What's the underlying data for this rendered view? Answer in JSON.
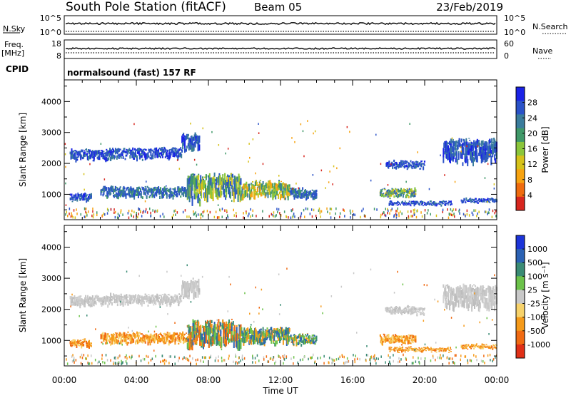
{
  "header": {
    "station": "South Pole Station (fitACF)",
    "beam": "Beam 05",
    "date": "23/Feb/2019"
  },
  "status_panels": {
    "nsky_label": "N.Sky",
    "nsky_ticks": [
      "10^5",
      "10^0"
    ],
    "nsearch_label": "N.Search",
    "nsearch_ticks": [
      "10^5",
      "10^0"
    ],
    "freq_label_line1": "Freq.",
    "freq_label_line2": "[MHz]",
    "freq_ticks": [
      "18",
      "8"
    ],
    "nave_label": "Nave",
    "nave_ticks": [
      "60",
      "0"
    ],
    "cpid_label": "CPID",
    "cpid_text": "normalsound (fast) 157 RF"
  },
  "chart_data": [
    {
      "type": "heatmap",
      "name": "power-panel",
      "ylabel": "Slant Range [km]",
      "xlabel": "",
      "ylim": [
        180,
        4700
      ],
      "yticks": [
        "1000",
        "2000",
        "3000",
        "4000"
      ],
      "xlim": [
        0,
        24
      ],
      "colorbar_label": "Power [dB]",
      "colorbar_ticks": [
        "4",
        "8",
        "12",
        "16",
        "20",
        "24",
        "28"
      ],
      "colorbar_colors": [
        "#1a22e6",
        "#2a52c8",
        "#3a7c9c",
        "#3f9868",
        "#8bc63b",
        "#d6c21a",
        "#f7a311",
        "#ef6b0e",
        "#d7261e"
      ],
      "echo_regions": [
        {
          "t_start": 0.3,
          "t_end": 2.5,
          "r_low": 2050,
          "r_high": 2450,
          "value": "blue"
        },
        {
          "t_start": 2.5,
          "t_end": 6.5,
          "r_low": 2100,
          "r_high": 2500,
          "value": "blue"
        },
        {
          "t_start": 6.5,
          "t_end": 7.5,
          "r_low": 2300,
          "r_high": 2950,
          "value": "blue"
        },
        {
          "t_start": 0.3,
          "t_end": 1.5,
          "r_low": 750,
          "r_high": 1050,
          "value": "blue"
        },
        {
          "t_start": 2.0,
          "t_end": 7.0,
          "r_low": 850,
          "r_high": 1250,
          "value": "blue-green"
        },
        {
          "t_start": 6.8,
          "t_end": 9.8,
          "r_low": 700,
          "r_high": 1600,
          "value": "green"
        },
        {
          "t_start": 9.8,
          "t_end": 12.5,
          "r_low": 800,
          "r_high": 1400,
          "value": "green-yellow"
        },
        {
          "t_start": 12.5,
          "t_end": 14.0,
          "r_low": 800,
          "r_high": 1200,
          "value": "blue-green"
        },
        {
          "t_start": 17.5,
          "t_end": 19.5,
          "r_low": 850,
          "r_high": 1200,
          "value": "green"
        },
        {
          "t_start": 17.8,
          "t_end": 20.0,
          "r_low": 1800,
          "r_high": 2100,
          "value": "blue"
        },
        {
          "t_start": 18.0,
          "t_end": 21.5,
          "r_low": 600,
          "r_high": 800,
          "value": "blue"
        },
        {
          "t_start": 21.0,
          "t_end": 24.0,
          "r_low": 1950,
          "r_high": 2750,
          "value": "blue"
        },
        {
          "t_start": 22.0,
          "t_end": 24.0,
          "r_low": 700,
          "r_high": 900,
          "value": "blue"
        }
      ]
    },
    {
      "type": "heatmap",
      "name": "velocity-panel",
      "ylabel": "Slant Range [km]",
      "xlabel": "Time UT",
      "ylim": [
        180,
        4700
      ],
      "yticks": [
        "1000",
        "2000",
        "3000",
        "4000"
      ],
      "xlim": [
        0,
        24
      ],
      "xticks": [
        "00:00",
        "04:00",
        "08:00",
        "12:00",
        "16:00",
        "20:00",
        "00:00"
      ],
      "colorbar_label": "Velocity [m s⁻¹]",
      "colorbar_ticks": [
        "1000",
        "500",
        "100",
        "25",
        "-25",
        "-100",
        "-500",
        "-1000"
      ],
      "colorbar_colors": [
        "#1c34d8",
        "#2b62b4",
        "#3a8b74",
        "#6cc24a",
        "#c8c8c8",
        "#f7d26a",
        "#f59a1a",
        "#f06a12",
        "#e03017"
      ],
      "echo_regions": [
        {
          "t_start": 0.3,
          "t_end": 2.5,
          "r_low": 2050,
          "r_high": 2450,
          "value": "gray"
        },
        {
          "t_start": 2.5,
          "t_end": 6.5,
          "r_low": 2100,
          "r_high": 2500,
          "value": "gray"
        },
        {
          "t_start": 6.5,
          "t_end": 7.5,
          "r_low": 2300,
          "r_high": 2950,
          "value": "gray"
        },
        {
          "t_start": 0.3,
          "t_end": 1.5,
          "r_low": 750,
          "r_high": 1050,
          "value": "orange"
        },
        {
          "t_start": 2.0,
          "t_end": 7.0,
          "r_low": 850,
          "r_high": 1250,
          "value": "orange"
        },
        {
          "t_start": 6.8,
          "t_end": 9.8,
          "r_low": 700,
          "r_high": 1600,
          "value": "orange-green"
        },
        {
          "t_start": 9.8,
          "t_end": 12.5,
          "r_low": 800,
          "r_high": 1400,
          "value": "green"
        },
        {
          "t_start": 12.5,
          "t_end": 14.0,
          "r_low": 800,
          "r_high": 1200,
          "value": "green"
        },
        {
          "t_start": 17.5,
          "t_end": 19.5,
          "r_low": 850,
          "r_high": 1200,
          "value": "orange"
        },
        {
          "t_start": 17.8,
          "t_end": 20.0,
          "r_low": 1800,
          "r_high": 2100,
          "value": "gray"
        },
        {
          "t_start": 18.0,
          "t_end": 21.5,
          "r_low": 600,
          "r_high": 800,
          "value": "orange"
        },
        {
          "t_start": 21.0,
          "t_end": 24.0,
          "r_low": 1950,
          "r_high": 2750,
          "value": "gray"
        },
        {
          "t_start": 22.0,
          "t_end": 24.0,
          "r_low": 700,
          "r_high": 900,
          "value": "orange"
        }
      ]
    }
  ]
}
